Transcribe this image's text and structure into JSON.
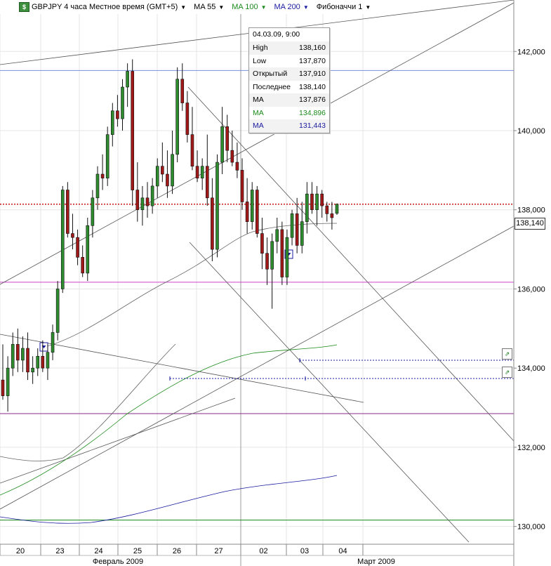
{
  "toolbar": {
    "logo_icon": "trading-chart-logo-icon",
    "symbol": "GBPJPY 4 часа Местное время (GMT+5)",
    "ma1": "MA 55",
    "ma2": "MA 100",
    "ma3": "MA 200",
    "fib": "Фибоначчи 1",
    "ma2_color": "#1a8a1a",
    "ma3_color": "#1a1aa0"
  },
  "tooltip": {
    "header": "04.03.09, 9:00",
    "rows": [
      {
        "label": "High",
        "value": "138,160",
        "color": "#000000"
      },
      {
        "label": "Low",
        "value": "137,870",
        "color": "#000000"
      },
      {
        "label": "Открытый",
        "value": "137,910",
        "color": "#000000"
      },
      {
        "label": "Последнее",
        "value": "138,140",
        "color": "#000000"
      },
      {
        "label": "MA",
        "value": "137,876",
        "color": "#000000"
      },
      {
        "label": "MA",
        "value": "134,896",
        "color": "#1a8a1a"
      },
      {
        "label": "MA",
        "value": "131,443",
        "color": "#1a1aa0"
      }
    ]
  },
  "last_price": "138,140",
  "chart_data": {
    "type": "candlestick",
    "y_ticks": [
      "142,000",
      "140,000",
      "138,000",
      "136,000",
      "134,000",
      "132,000",
      "130,000"
    ],
    "y_tick_values": [
      142000,
      140000,
      138000,
      136000,
      134000,
      132000,
      130000
    ],
    "ylim": [
      129550,
      143300
    ],
    "x_day_labels": [
      "20",
      "23",
      "24",
      "25",
      "26",
      "27",
      "02",
      "03",
      "04"
    ],
    "x_month_labels": [
      "Февраль 2009",
      "Март 2009"
    ],
    "last_price_value": 138140,
    "horizontal_levels": [
      {
        "value": 141520,
        "color": "#7a8fe0",
        "style": "solid"
      },
      {
        "value": 136170,
        "color": "#cc44cc",
        "style": "solid"
      },
      {
        "value": 132850,
        "color": "#8a2a8a",
        "style": "solid"
      },
      {
        "value": 130160,
        "color": "#1a8a1a",
        "style": "solid"
      },
      {
        "value": 138140,
        "color": "#cc0000",
        "style": "dotted"
      }
    ],
    "grid": true,
    "candles": [
      {
        "o": 133700,
        "h": 134600,
        "l": 133200,
        "c": 133300
      },
      {
        "o": 133300,
        "h": 134300,
        "l": 132900,
        "c": 134000
      },
      {
        "o": 134000,
        "h": 134900,
        "l": 133800,
        "c": 134600
      },
      {
        "o": 134600,
        "h": 135000,
        "l": 133900,
        "c": 134200
      },
      {
        "o": 134200,
        "h": 134800,
        "l": 133900,
        "c": 134500
      },
      {
        "o": 134500,
        "h": 134900,
        "l": 133700,
        "c": 133900
      },
      {
        "o": 133900,
        "h": 134300,
        "l": 133600,
        "c": 134000
      },
      {
        "o": 134000,
        "h": 134500,
        "l": 133800,
        "c": 134300
      },
      {
        "o": 134300,
        "h": 134700,
        "l": 133900,
        "c": 134000
      },
      {
        "o": 134000,
        "h": 134600,
        "l": 133700,
        "c": 134400
      },
      {
        "o": 134400,
        "h": 135100,
        "l": 134200,
        "c": 134900
      },
      {
        "o": 134900,
        "h": 136200,
        "l": 134700,
        "c": 136000
      },
      {
        "o": 136000,
        "h": 138600,
        "l": 135900,
        "c": 138500
      },
      {
        "o": 138500,
        "h": 138700,
        "l": 137300,
        "c": 137400
      },
      {
        "o": 137400,
        "h": 137900,
        "l": 137000,
        "c": 137300
      },
      {
        "o": 137300,
        "h": 137500,
        "l": 136600,
        "c": 136800
      },
      {
        "o": 136800,
        "h": 137100,
        "l": 136300,
        "c": 136400
      },
      {
        "o": 136400,
        "h": 137800,
        "l": 136200,
        "c": 137600
      },
      {
        "o": 137600,
        "h": 138500,
        "l": 137300,
        "c": 138300
      },
      {
        "o": 138300,
        "h": 139100,
        "l": 138000,
        "c": 138900
      },
      {
        "o": 138900,
        "h": 139400,
        "l": 138500,
        "c": 138800
      },
      {
        "o": 138800,
        "h": 140100,
        "l": 138600,
        "c": 139900
      },
      {
        "o": 139900,
        "h": 140700,
        "l": 139600,
        "c": 140500
      },
      {
        "o": 140500,
        "h": 140900,
        "l": 140100,
        "c": 140300
      },
      {
        "o": 140300,
        "h": 141300,
        "l": 140000,
        "c": 141100
      },
      {
        "o": 141100,
        "h": 141700,
        "l": 140600,
        "c": 141500
      },
      {
        "o": 141500,
        "h": 141800,
        "l": 138100,
        "c": 138500
      },
      {
        "o": 138500,
        "h": 139200,
        "l": 137700,
        "c": 138000
      },
      {
        "o": 138000,
        "h": 138600,
        "l": 137600,
        "c": 138300
      },
      {
        "o": 138300,
        "h": 138700,
        "l": 137800,
        "c": 138100
      },
      {
        "o": 138100,
        "h": 138800,
        "l": 137900,
        "c": 138600
      },
      {
        "o": 138600,
        "h": 139300,
        "l": 138300,
        "c": 139100
      },
      {
        "o": 139100,
        "h": 139700,
        "l": 138700,
        "c": 138900
      },
      {
        "o": 138900,
        "h": 139500,
        "l": 138300,
        "c": 138600
      },
      {
        "o": 138600,
        "h": 140000,
        "l": 138400,
        "c": 139400
      },
      {
        "o": 139400,
        "h": 141600,
        "l": 139200,
        "c": 141300
      },
      {
        "o": 141300,
        "h": 141700,
        "l": 140500,
        "c": 140700
      },
      {
        "o": 140700,
        "h": 141000,
        "l": 139700,
        "c": 139900
      },
      {
        "o": 139900,
        "h": 140600,
        "l": 139000,
        "c": 139100
      },
      {
        "o": 139100,
        "h": 139500,
        "l": 138700,
        "c": 138800
      },
      {
        "o": 138800,
        "h": 139300,
        "l": 138500,
        "c": 139100
      },
      {
        "o": 139100,
        "h": 139900,
        "l": 138100,
        "c": 138300
      },
      {
        "o": 138300,
        "h": 138800,
        "l": 136700,
        "c": 137000
      },
      {
        "o": 137000,
        "h": 139400,
        "l": 136800,
        "c": 139200
      },
      {
        "o": 139200,
        "h": 140600,
        "l": 138900,
        "c": 140100
      },
      {
        "o": 140100,
        "h": 140400,
        "l": 139200,
        "c": 139500
      },
      {
        "o": 139500,
        "h": 140000,
        "l": 139100,
        "c": 139200
      },
      {
        "o": 139200,
        "h": 139700,
        "l": 138800,
        "c": 139000
      },
      {
        "o": 139000,
        "h": 139300,
        "l": 138000,
        "c": 138200
      },
      {
        "o": 138200,
        "h": 138800,
        "l": 137400,
        "c": 137700
      },
      {
        "o": 137700,
        "h": 138700,
        "l": 137500,
        "c": 138500
      },
      {
        "o": 138500,
        "h": 138600,
        "l": 137300,
        "c": 137400
      },
      {
        "o": 137400,
        "h": 137800,
        "l": 136500,
        "c": 136900
      },
      {
        "o": 136900,
        "h": 137300,
        "l": 136100,
        "c": 136500
      },
      {
        "o": 136500,
        "h": 137400,
        "l": 135500,
        "c": 137200
      },
      {
        "o": 137200,
        "h": 137800,
        "l": 136900,
        "c": 137500
      },
      {
        "o": 137500,
        "h": 137700,
        "l": 136100,
        "c": 136300
      },
      {
        "o": 136300,
        "h": 137500,
        "l": 136100,
        "c": 137300
      },
      {
        "o": 137300,
        "h": 138000,
        "l": 137100,
        "c": 137900
      },
      {
        "o": 137900,
        "h": 138300,
        "l": 136900,
        "c": 137100
      },
      {
        "o": 137100,
        "h": 138200,
        "l": 136900,
        "c": 137700
      },
      {
        "o": 137700,
        "h": 138700,
        "l": 137400,
        "c": 138400
      },
      {
        "o": 138400,
        "h": 138700,
        "l": 137900,
        "c": 138000
      },
      {
        "o": 138000,
        "h": 138600,
        "l": 137600,
        "c": 138400
      },
      {
        "o": 138400,
        "h": 138500,
        "l": 137800,
        "c": 138100
      },
      {
        "o": 138100,
        "h": 138200,
        "l": 137700,
        "c": 137900
      },
      {
        "o": 137900,
        "h": 138200,
        "l": 137500,
        "c": 137800
      },
      {
        "o": 137910,
        "h": 138160,
        "l": 137870,
        "c": 138140
      }
    ]
  }
}
